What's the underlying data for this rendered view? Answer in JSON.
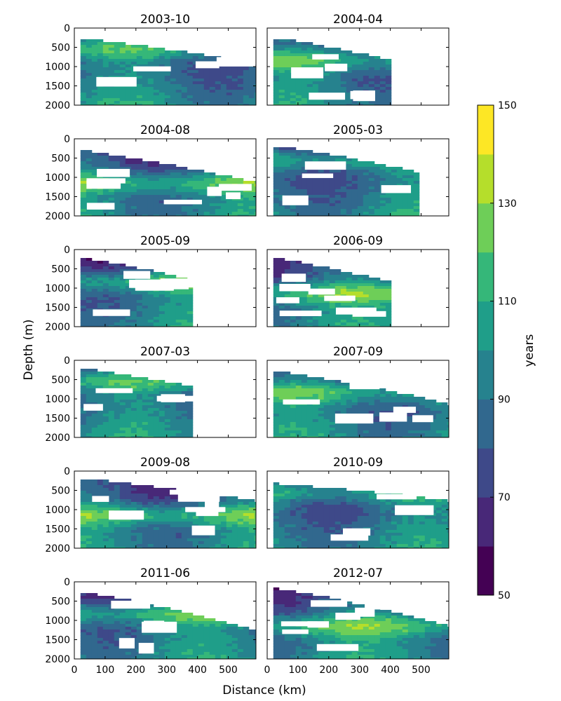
{
  "figure": {
    "ylabel": "Depth (m)",
    "xlabel": "Distance (km)"
  },
  "chart_data": {
    "type": "heatmap",
    "layout": "6 rows x 2 columns of filled-contour panels sharing axes",
    "xticks": [
      0,
      100,
      200,
      300,
      400,
      500
    ],
    "xlim": [
      0,
      590
    ],
    "yticks": [
      0,
      500,
      1000,
      1500,
      2000
    ],
    "ylim": [
      2000,
      0
    ],
    "y_inverted": true,
    "grid": false,
    "panels": [
      {
        "title": "2003-10",
        "max_distance_km": 590
      },
      {
        "title": "2004-04",
        "max_distance_km": 400
      },
      {
        "title": "2004-08",
        "max_distance_km": 590
      },
      {
        "title": "2005-03",
        "max_distance_km": 490
      },
      {
        "title": "2005-09",
        "max_distance_km": 380
      },
      {
        "title": "2006-09",
        "max_distance_km": 385
      },
      {
        "title": "2007-03",
        "max_distance_km": 380
      },
      {
        "title": "2007-09",
        "max_distance_km": 590
      },
      {
        "title": "2009-08",
        "max_distance_km": 590
      },
      {
        "title": "2010-09",
        "max_distance_km": 590
      },
      {
        "title": "2011-06",
        "max_distance_km": 590
      },
      {
        "title": "2012-07",
        "max_distance_km": 590
      }
    ],
    "colorbar": {
      "label": "years",
      "min": 50,
      "max": 150,
      "step": 10,
      "ticks": [
        50,
        70,
        90,
        110,
        130,
        150
      ],
      "colormap": "viridis",
      "colors": [
        "#440154",
        "#482878",
        "#3e4989",
        "#31688e",
        "#26828e",
        "#1f9e89",
        "#35b779",
        "#6ece58",
        "#b5de2b",
        "#fde725"
      ]
    }
  }
}
